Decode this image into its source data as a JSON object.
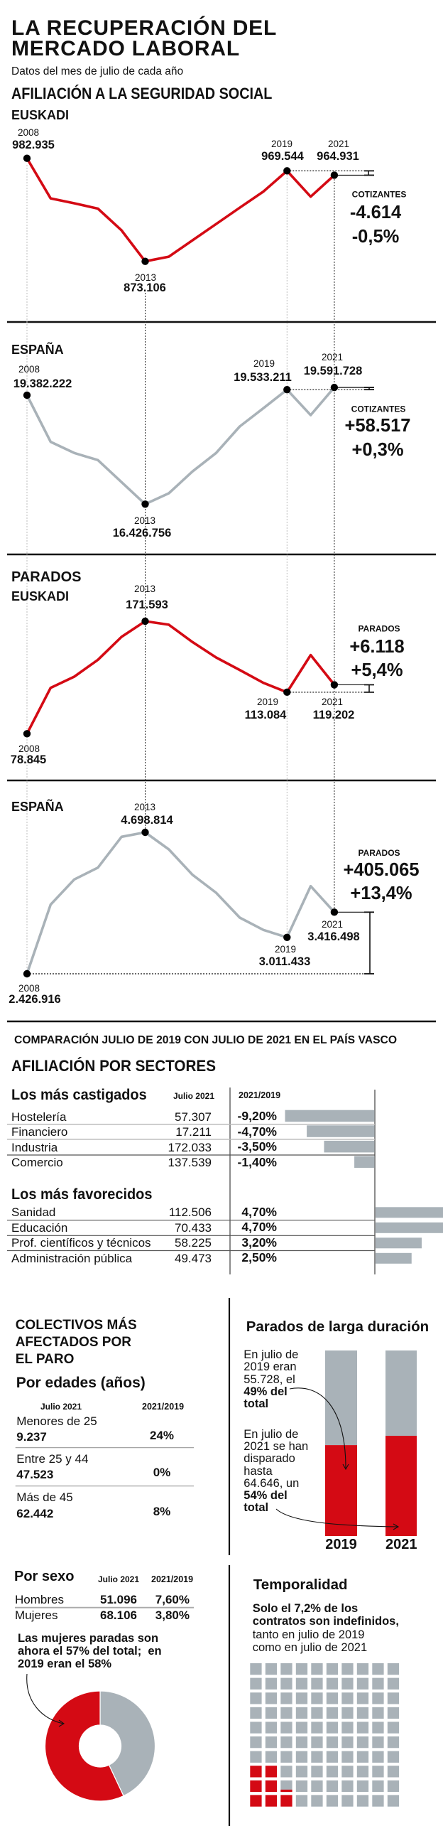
{
  "header": {
    "title_line1": "LA RECUPERACIÓN DEL",
    "title_line2": "MERCADO LABORAL",
    "subtitle": "Datos del mes de julio de cada año"
  },
  "sections": {
    "afiliacion_title": "AFILIACIÓN A LA SEGURIDAD SOCIAL",
    "parados_title": "PARADOS"
  },
  "colors": {
    "red": "#d40a14",
    "gray": "#a9b2b8",
    "point": "#000000",
    "text": "#111111"
  },
  "chart_data": [
    {
      "id": "afiliacion-euskadi",
      "type": "line",
      "group": "AFILIACIÓN A LA SEGURIDAD SOCIAL",
      "title": "EUSKADI",
      "series_color": "#d40a14",
      "x": [
        2008,
        2009,
        2010,
        2011,
        2012,
        2013,
        2014,
        2015,
        2016,
        2017,
        2018,
        2019,
        2020,
        2021
      ],
      "values": [
        982935,
        940200,
        935000,
        929300,
        906100,
        873106,
        878100,
        895500,
        912900,
        930300,
        947500,
        969544,
        942000,
        964931
      ],
      "labels": {
        "p2008": {
          "year": "2008",
          "value": "982.935"
        },
        "p2013": {
          "year": "2013",
          "value": "873.106"
        },
        "p2019": {
          "year": "2019",
          "value": "969.544"
        },
        "p2021": {
          "year": "2021",
          "value": "964.931"
        }
      },
      "change": {
        "label": "COTIZANTES",
        "absolute": "-4.614",
        "percent": "-0,5%"
      }
    },
    {
      "id": "afiliacion-espana",
      "type": "line",
      "group": "AFILIACIÓN A LA SEGURIDAD SOCIAL",
      "title": "ESPAÑA",
      "series_color": "#a9b2b8",
      "x": [
        2008,
        2009,
        2010,
        2011,
        2012,
        2013,
        2014,
        2015,
        2016,
        2017,
        2018,
        2019,
        2020,
        2021
      ],
      "values": [
        19382222,
        18116600,
        17814600,
        17621900,
        17024400,
        16426756,
        16722400,
        17313500,
        17814600,
        18534200,
        19028900,
        19533211,
        18842600,
        19591728
      ],
      "labels": {
        "p2008": {
          "year": "2008",
          "value": "19.382.222"
        },
        "p2013": {
          "year": "2013",
          "value": "16.426.756"
        },
        "p2019": {
          "year": "2019",
          "value": "19.533.211"
        },
        "p2021": {
          "year": "2021",
          "value": "19.591.728"
        }
      },
      "change": {
        "label": "COTIZANTES",
        "absolute": "+58.517",
        "percent": "+0,3%"
      }
    },
    {
      "id": "parados-euskadi",
      "type": "line",
      "group": "PARADOS",
      "title": "EUSKADI",
      "series_color": "#d40a14",
      "x": [
        2008,
        2009,
        2010,
        2011,
        2012,
        2013,
        2014,
        2015,
        2016,
        2017,
        2018,
        2019,
        2020,
        2021
      ],
      "values": [
        78845,
        116700,
        125900,
        139800,
        158700,
        171593,
        168700,
        154400,
        141700,
        131400,
        120800,
        113084,
        143700,
        119202
      ],
      "labels": {
        "p2008": {
          "year": "2008",
          "value": "78.845"
        },
        "p2013": {
          "year": "2013",
          "value": "171.593"
        },
        "p2019": {
          "year": "2019",
          "value": "113.084"
        },
        "p2021": {
          "year": "2021",
          "value": "119.202"
        }
      },
      "change": {
        "label": "PARADOS",
        "absolute": "+6.118",
        "percent": "+5,4%"
      }
    },
    {
      "id": "parados-espana",
      "type": "line",
      "group": "PARADOS",
      "title": "ESPAÑA",
      "series_color": "#a9b2b8",
      "x": [
        2008,
        2009,
        2010,
        2011,
        2012,
        2013,
        2014,
        2015,
        2016,
        2017,
        2018,
        2019,
        2020,
        2021
      ],
      "values": [
        2426916,
        3538100,
        3941500,
        4131800,
        4626500,
        4698814,
        4424800,
        4017600,
        3728400,
        3328800,
        3130900,
        3011433,
        3835000,
        3416498
      ],
      "labels": {
        "p2008": {
          "year": "2008",
          "value": "2.426.916"
        },
        "p2013": {
          "year": "2013",
          "value": "4.698.814"
        },
        "p2019": {
          "year": "2019",
          "value": "3.011.433"
        },
        "p2021": {
          "year": "2021",
          "value": "3.416.498"
        }
      },
      "change": {
        "label": "PARADOS",
        "absolute": "+405.065",
        "percent": "+13,4%"
      }
    },
    {
      "id": "afiliacion-sectores",
      "type": "bar",
      "orientation": "horizontal",
      "kicker": "COMPARACIÓN JULIO DE 2019 CON JULIO DE 2021 EN EL PAÍS VASCO",
      "title": "AFILIACIÓN POR SECTORES",
      "columns": {
        "julio_2021": "Julio 2021",
        "change": "2021/2019"
      },
      "groups": [
        {
          "title": "Los más castigados",
          "rows": [
            {
              "label": "Hostelería",
              "julio_2021": "57.307",
              "change": "-9,20%",
              "change_value": -9.2
            },
            {
              "label": "Financiero",
              "julio_2021": "17.211",
              "change": "-4,70%",
              "change_value": -4.7
            },
            {
              "label": "Industria",
              "julio_2021": "172.033",
              "change": "-3,50%",
              "change_value": -3.5
            },
            {
              "label": "Comercio",
              "julio_2021": "137.539",
              "change": "-1,40%",
              "change_value": -1.4
            }
          ]
        },
        {
          "title": "Los más favorecidos",
          "rows": [
            {
              "label": "Sanidad",
              "julio_2021": "112.506",
              "change": "4,70%",
              "change_value": 4.7
            },
            {
              "label": "Educación",
              "julio_2021": "70.433",
              "change": "4,70%",
              "change_value": 4.7
            },
            {
              "label": "Prof. científicos y técnicos",
              "julio_2021": "58.225",
              "change": "3,20%",
              "change_value": 3.2
            },
            {
              "label": "Administración pública",
              "julio_2021": "49.473",
              "change": "2,50%",
              "change_value": 2.5
            }
          ]
        }
      ]
    },
    {
      "id": "parados-larga-duracion",
      "type": "bar",
      "stacked": true,
      "title": "Parados de larga duración",
      "categories": [
        "2019",
        "2021"
      ],
      "share_pct": [
        49,
        54
      ],
      "annotations": [
        {
          "text": "En julio de 2019 eran 55.728, el",
          "bold": "49% del total"
        },
        {
          "text": "En julio de 2021 se han disparado hasta 64.646, un",
          "bold": "54% del total"
        }
      ]
    },
    {
      "id": "parados-por-sexo",
      "type": "pie",
      "donut": true,
      "slices": [
        {
          "label": "Hombres",
          "value_pct": 43,
          "color": "#a9b2b8"
        },
        {
          "label": "Mujeres",
          "value_pct": 57,
          "color": "#d40a14"
        }
      ],
      "annotation": "Las mujeres paradas son ahora el 57% del total;  en 2019 eran el 58%"
    },
    {
      "id": "temporalidad",
      "type": "heatmap",
      "variant": "waffle",
      "title": "Temporalidad",
      "grid": [
        10,
        10
      ],
      "highlighted_pct": 7.2,
      "text_bold": "Solo el 7,2% de los contratos son indefinidos,",
      "text_regular": "tanto en julio de 2019 como en julio de 2021"
    }
  ],
  "colectivos": {
    "title": "COLECTIVOS MÁS AFECTADOS POR EL PARO",
    "por_edades": {
      "title": "Por edades (años)",
      "columns": {
        "julio_2021": "Julio 2021",
        "change": "2021/2019"
      },
      "rows": [
        {
          "label": "Menores de 25",
          "julio_2021": "9.237",
          "change": "24%"
        },
        {
          "label": "Entre 25 y 44",
          "julio_2021": "47.523",
          "change": "0%"
        },
        {
          "label": "Más de 45",
          "julio_2021": "62.442",
          "change": "8%"
        }
      ]
    },
    "por_sexo": {
      "title": "Por sexo",
      "columns": {
        "julio_2021": "Julio 2021",
        "change": "2021/2019"
      },
      "rows": [
        {
          "label": "Hombres",
          "julio_2021": "51.096",
          "change": "7,60%"
        },
        {
          "label": "Mujeres",
          "julio_2021": "68.106",
          "change": "3,80%"
        }
      ]
    }
  }
}
